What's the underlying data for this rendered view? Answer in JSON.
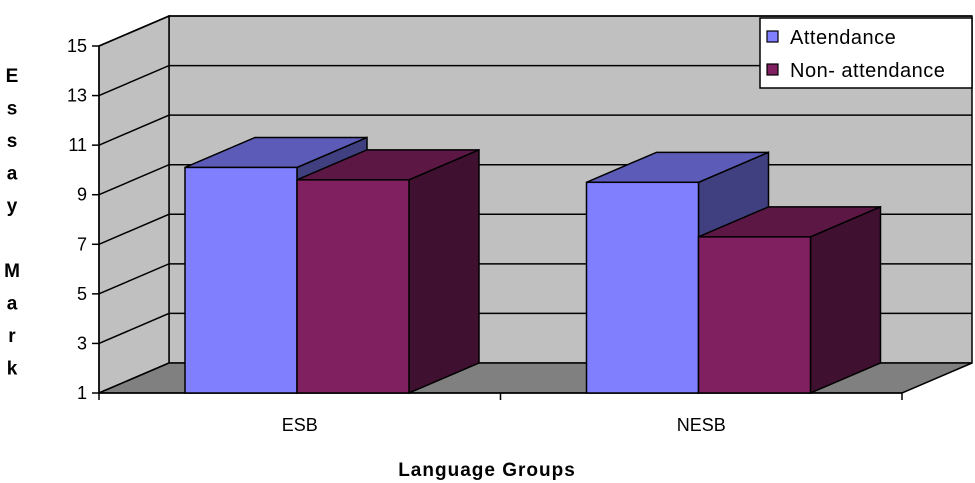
{
  "chart_data": {
    "type": "bar",
    "categories": [
      "ESB",
      "NESB"
    ],
    "series": [
      {
        "name": "Attendance",
        "values": [
          10.1,
          9.5
        ],
        "color": "#8080ff"
      },
      {
        "name": "Non- attendance",
        "values": [
          9.6,
          7.3
        ],
        "color": "#802060"
      }
    ],
    "xlabel": "Language Groups",
    "ylabel": "Essay Mark",
    "ylim": [
      1,
      15
    ],
    "yticks": [
      "1",
      "3",
      "5",
      "7",
      "9",
      "11",
      "13",
      "15"
    ],
    "grid": true,
    "legend_position": "top-right",
    "colors": {
      "wall": "#c0c0c0",
      "floor": "#808080",
      "grid": "#000000"
    }
  }
}
